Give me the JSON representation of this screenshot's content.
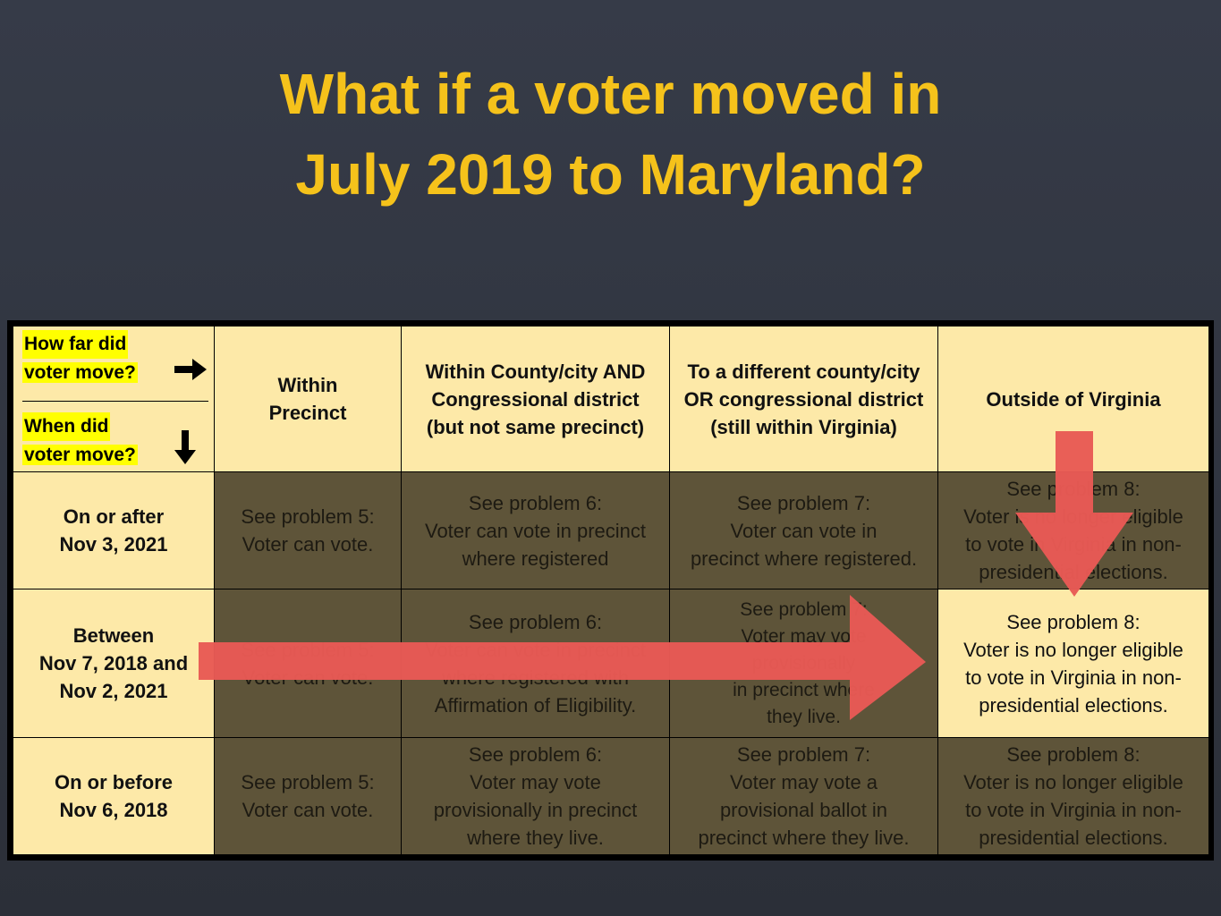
{
  "title": {
    "line1": "What if a voter moved in",
    "line2": "July 2019 to Maryland?"
  },
  "corner": {
    "top_line1": "How far did",
    "top_line2": "voter move?",
    "bottom_line1": "When did",
    "bottom_line2": "voter move?",
    "right_arrow_icon": "arrow-right-icon",
    "down_arrow_icon": "arrow-down-icon"
  },
  "columns": [
    {
      "line1": "Within",
      "line2": "Precinct"
    },
    {
      "line1": "Within County/city AND",
      "line2": "Congressional district",
      "line3": "(but not same precinct)"
    },
    {
      "line1": "To a different county/city",
      "line2": "OR congressional district",
      "line3": "(still within Virginia)"
    },
    {
      "line1": "Outside of Virginia"
    }
  ],
  "rows": [
    {
      "header": {
        "line1": "On or after",
        "line2": "Nov 3, 2021"
      },
      "cells": [
        {
          "line1": "See problem 5:",
          "line2": "Voter can vote."
        },
        {
          "line1": "See problem 6:",
          "line2": "Voter can vote in precinct",
          "line3": "where registered"
        },
        {
          "line1": "See problem 7:",
          "line2": "Voter can vote in",
          "line3": "precinct where registered."
        },
        {
          "line1": "See problem 8:",
          "line2": "Voter is no longer eligible",
          "line3": "to vote in Virginia in non-",
          "line4": "presidential elections."
        }
      ]
    },
    {
      "header": {
        "line1": "Between",
        "line2": "Nov 7, 2018 and",
        "line3": "Nov 2, 2021"
      },
      "cells": [
        {
          "line1": "See problem 5:",
          "line2": "Voter can vote."
        },
        {
          "line1": "See problem 6:",
          "line2": "Voter can vote in precinct",
          "line3": "where registered with",
          "line4": "Affirmation of Eligibility."
        },
        {
          "line1": "See problem 7:",
          "line2": "Voter may vote",
          "line3": "provisionally",
          "line4": "in precinct where",
          "line5": "they live."
        },
        {
          "line1": "See problem 8:",
          "line2": "Voter is no longer eligible",
          "line3": "to vote in Virginia in non-",
          "line4": "presidential elections."
        }
      ]
    },
    {
      "header": {
        "line1": "On or before",
        "line2": "Nov 6, 2018"
      },
      "cells": [
        {
          "line1": "See problem 5:",
          "line2": "Voter can vote."
        },
        {
          "line1": "See problem 6:",
          "line2": "Voter may vote",
          "line3": "provisionally in precinct",
          "line4": "where they live."
        },
        {
          "line1": "See problem 7:",
          "line2": "Voter may vote a",
          "line3": "provisional ballot in",
          "line4": "precinct where they live."
        },
        {
          "line1": "See problem 8:",
          "line2": "Voter is no longer eligible",
          "line3": "to vote in Virginia in non-",
          "line4": "presidential elections."
        }
      ]
    }
  ],
  "colors": {
    "title": "#f5c21b",
    "highlight_cell": "#fde9a8",
    "dim_cell": "#5e5439",
    "arrow": "#e85a55"
  }
}
